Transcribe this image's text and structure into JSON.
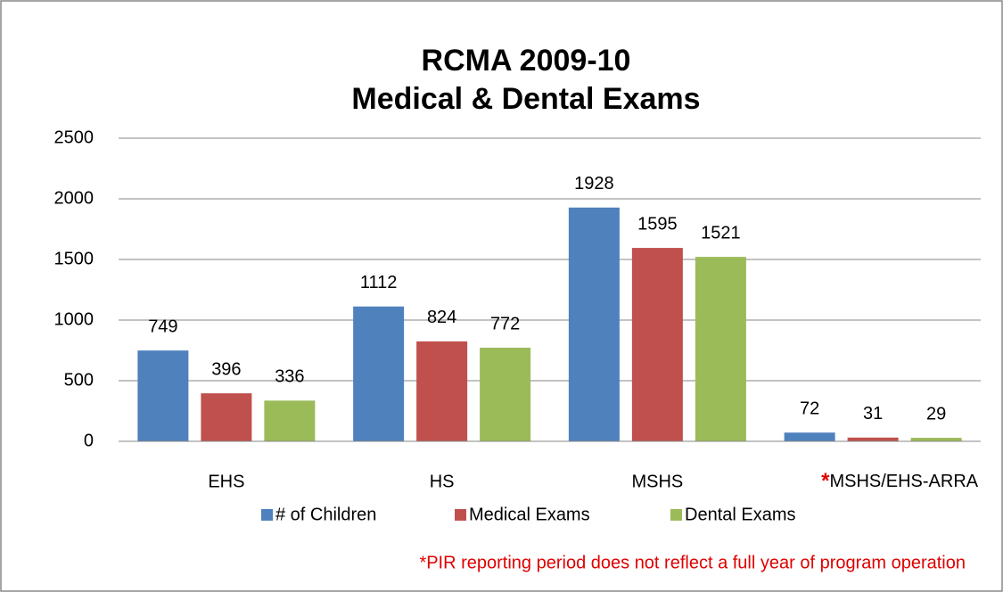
{
  "chart_data": {
    "type": "bar",
    "title": "RCMA 2009-10",
    "subtitle": "Medical & Dental Exams",
    "categories": [
      "EHS",
      "HS",
      "MSHS",
      "*MSHS/EHS-ARRA"
    ],
    "series": [
      {
        "name": "# of Children",
        "color": "#4f81bd",
        "values": [
          749,
          1112,
          1928,
          72
        ]
      },
      {
        "name": "Medical Exams",
        "color": "#c0504d",
        "values": [
          396,
          824,
          1595,
          31
        ]
      },
      {
        "name": "Dental Exams",
        "color": "#9bbb59",
        "values": [
          336,
          772,
          1521,
          29
        ]
      }
    ],
    "ylim": [
      0,
      2500
    ],
    "yticks": [
      0,
      500,
      1000,
      1500,
      2000,
      2500
    ],
    "grid": true,
    "legend": "bottom",
    "annotation": "*PIR reporting  period does not reflect a full year of program operation"
  }
}
